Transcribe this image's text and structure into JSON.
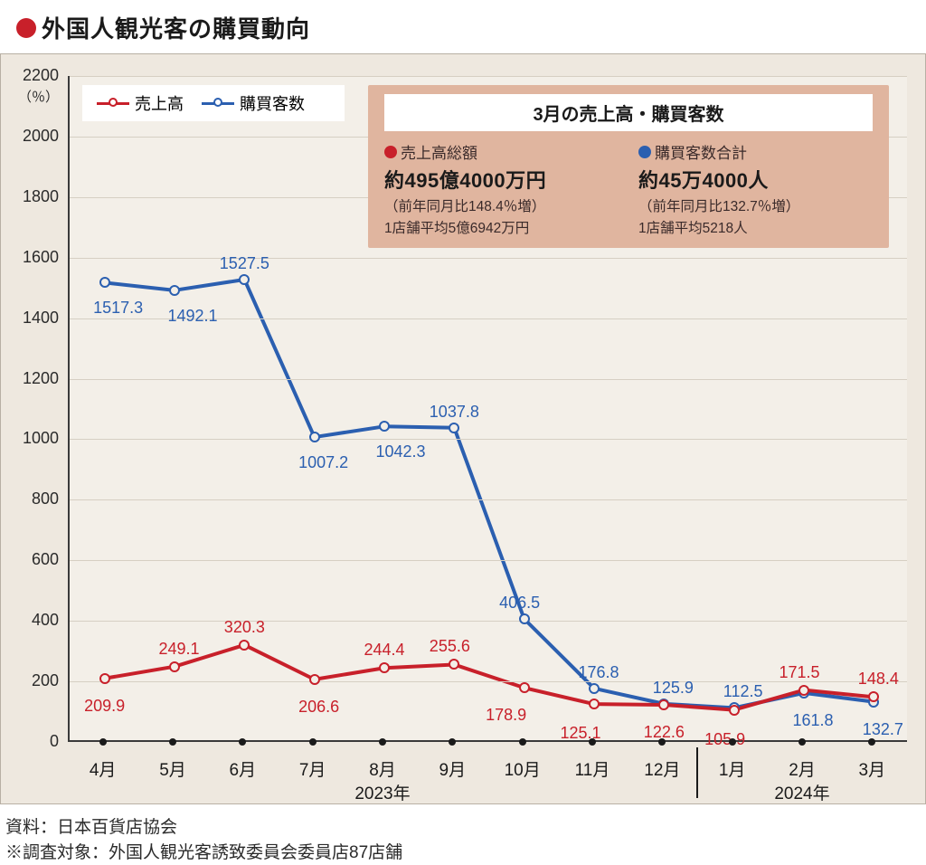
{
  "colors": {
    "background_outer": "#ffffff",
    "chart_outer_bg": "#eee8df",
    "chart_outer_border": "#b8b0a4",
    "plot_bg": "#f3efe8",
    "axis_color": "#3a3a3a",
    "grid_color": "#d6cfc3",
    "text_color": "#1a1a1a",
    "bullet_color": "#c8202a",
    "series_sales": "#c8202a",
    "series_customers": "#2b5fb0",
    "callout_bg": "#e0b59f",
    "callout_title_bg": "#ffffff",
    "legend_bg": "#ffffff"
  },
  "title": "外国人観光客の購買動向",
  "chart": {
    "type": "line",
    "ylim": [
      0,
      2200
    ],
    "ytick_step": 200,
    "y_unit_label": "（％）",
    "x_categories": [
      "4月",
      "5月",
      "6月",
      "7月",
      "8月",
      "9月",
      "10月",
      "11月",
      "12月",
      "1月",
      "2月",
      "3月"
    ],
    "x_major_ticks_count": 12,
    "year_labels": [
      {
        "label": "2023年",
        "under_category_index": 4
      },
      {
        "label": "2024年",
        "under_category_index": 10
      }
    ],
    "year_separator_after_index": 8,
    "line_width": 4,
    "marker_size": 12,
    "marker_style": "circle-open",
    "font_size_axis": 19,
    "font_size_values": 18,
    "series": {
      "sales": {
        "label": "売上高",
        "color": "#c8202a",
        "values": [
          209.9,
          249.1,
          320.3,
          206.6,
          244.4,
          255.6,
          178.9,
          125.1,
          122.6,
          105.9,
          171.5,
          148.4
        ],
        "value_label_offset": [
          {
            "dx": 0,
            "dy": 20
          },
          {
            "dx": 5,
            "dy": -30
          },
          {
            "dx": 0,
            "dy": -30
          },
          {
            "dx": 5,
            "dy": 20
          },
          {
            "dx": 0,
            "dy": -30
          },
          {
            "dx": -5,
            "dy": -30
          },
          {
            "dx": -20,
            "dy": 20
          },
          {
            "dx": -15,
            "dy": 22
          },
          {
            "dx": 0,
            "dy": 20
          },
          {
            "dx": -10,
            "dy": 22
          },
          {
            "dx": -5,
            "dy": -30
          },
          {
            "dx": 5,
            "dy": -30
          }
        ]
      },
      "customers": {
        "label": "購買客数",
        "color": "#2b5fb0",
        "values": [
          1517.3,
          1492.1,
          1527.5,
          1007.2,
          1042.3,
          1037.8,
          406.5,
          176.8,
          125.9,
          112.5,
          161.8,
          132.7
        ],
        "value_label_offset": [
          {
            "dx": 15,
            "dy": 18
          },
          {
            "dx": 20,
            "dy": 18
          },
          {
            "dx": 0,
            "dy": -28
          },
          {
            "dx": 10,
            "dy": 18
          },
          {
            "dx": 18,
            "dy": 18
          },
          {
            "dx": 0,
            "dy": -28
          },
          {
            "dx": -5,
            "dy": -28
          },
          {
            "dx": 5,
            "dy": -28
          },
          {
            "dx": 10,
            "dy": -28
          },
          {
            "dx": 10,
            "dy": -28
          },
          {
            "dx": 10,
            "dy": 20
          },
          {
            "dx": 10,
            "dy": 20
          }
        ]
      }
    }
  },
  "legend": {
    "items": [
      {
        "key": "sales",
        "label": "売上高",
        "color": "#c8202a"
      },
      {
        "key": "customers",
        "label": "購買客数",
        "color": "#2b5fb0"
      }
    ]
  },
  "callout": {
    "title": "3月の売上高・購買客数",
    "left": {
      "color": "#c8202a",
      "heading": "売上高総額",
      "big": "約495億4000万円",
      "sub1": "（前年同月比148.4％増）",
      "sub2": "1店舗平均5億6942万円"
    },
    "right": {
      "color": "#2b5fb0",
      "heading": "購買客数合計",
      "big": "約45万4000人",
      "sub1": "（前年同月比132.7％増）",
      "sub2": "1店舗平均5218人"
    }
  },
  "footer": {
    "line1": "資料：日本百貨店協会",
    "line2": "※調査対象：外国人観光客誘致委員会委員店87店舗"
  }
}
